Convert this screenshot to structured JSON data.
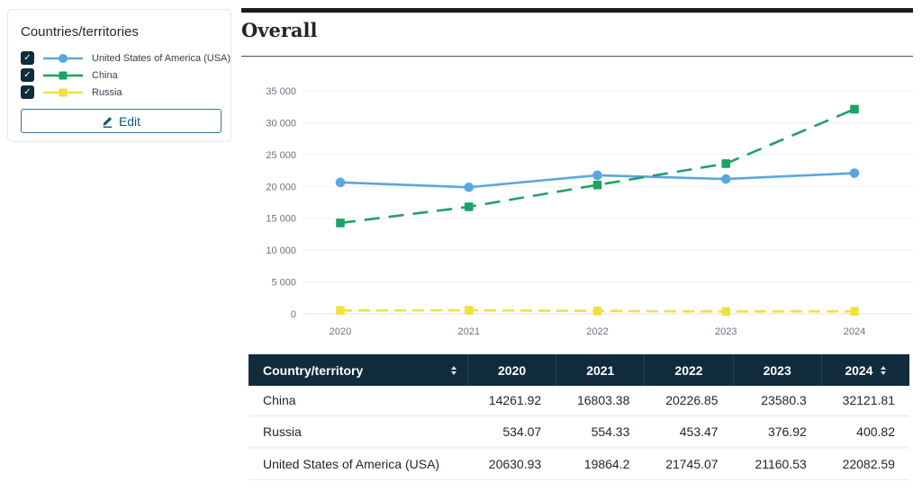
{
  "panel": {
    "title": "Countries/territories",
    "edit_label": "Edit",
    "items": [
      {
        "label": "United States of America (USA)",
        "color": "#5aa7de",
        "marker": "circle",
        "checked": true
      },
      {
        "label": "China",
        "color": "#1ea266",
        "marker": "square",
        "checked": true
      },
      {
        "label": "Russia",
        "color": "#f0e13c",
        "marker": "square",
        "checked": true
      }
    ]
  },
  "main": {
    "title": "Overall"
  },
  "chart_data": {
    "type": "line",
    "x": [
      2020,
      2021,
      2022,
      2023,
      2024
    ],
    "series": [
      {
        "name": "United States of America (USA)",
        "color": "#5aa7de",
        "marker": "circle",
        "line_style": "solid",
        "dash": "",
        "values": [
          20630.93,
          19864.2,
          21745.07,
          21160.53,
          22082.59
        ]
      },
      {
        "name": "China",
        "color": "#1ea266",
        "marker": "square",
        "line_style": "dashed",
        "dash": "17 10",
        "values": [
          14261.92,
          16803.38,
          20226.85,
          23580.3,
          32121.81
        ]
      },
      {
        "name": "Russia",
        "color": "#f0e13c",
        "marker": "square",
        "line_style": "dashed",
        "dash": "13 7",
        "values": [
          534.07,
          554.33,
          453.47,
          376.92,
          400.82
        ]
      }
    ],
    "title": "Overall",
    "xlabel": "",
    "ylabel": "",
    "ylim": [
      0,
      35000
    ],
    "ytick_step": 5000,
    "ytick_labels": [
      "0",
      "5 000",
      "10 000",
      "15 000",
      "20 000",
      "25 000",
      "30 000",
      "35 000"
    ],
    "grid": true,
    "legend_position": "left-panel"
  },
  "table": {
    "columns": [
      "Country/territory",
      "2020",
      "2021",
      "2022",
      "2023",
      "2024"
    ],
    "sortable_columns": [
      "Country/territory",
      "2024"
    ],
    "rows": [
      {
        "name": "China",
        "values": [
          "14261.92",
          "16803.38",
          "20226.85",
          "23580.3",
          "32121.81"
        ]
      },
      {
        "name": "Russia",
        "values": [
          "534.07",
          "554.33",
          "453.47",
          "376.92",
          "400.82"
        ]
      },
      {
        "name": "United States of America (USA)",
        "values": [
          "20630.93",
          "19864.2",
          "21745.07",
          "21160.53",
          "22082.59"
        ]
      }
    ]
  },
  "colors": {
    "table_header_bg": "#102b3c",
    "checkbox_bg": "#0f2b3d",
    "edit_accent": "#0d5a7c",
    "top_rule": "#1b1b1b",
    "axis_text": "#6b7280",
    "gridline": "#f1f1f1"
  },
  "icons": {
    "checkbox_check": "check-icon",
    "edit": "pencil-icon",
    "sort": "sort-arrows-icon"
  }
}
